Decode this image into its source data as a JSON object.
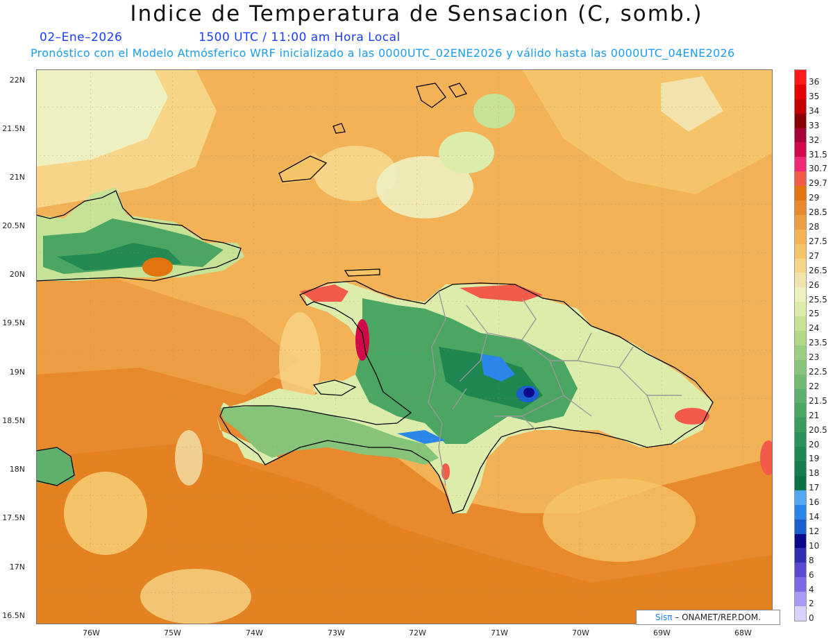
{
  "title": "Indice de Temperatura de Sensacion (C, somb.)",
  "date_label": "02–Ene–2026",
  "time_label": "1500 UTC / 11:00 am Hora Local",
  "forecast_info": "Pronóstico con el Modelo Atmósferico WRF inicializado a las 0000UTC_02ENE2026 y válido hasta las  0000UTC_04ENE2026",
  "credit": {
    "logo": "Sisπ",
    "text": " – ONAMET/REP.DOM."
  },
  "axes": {
    "lat_labels": [
      "22N",
      "21.5N",
      "21N",
      "20.5N",
      "20N",
      "19.5N",
      "19N",
      "18.5N",
      "18N",
      "17.5N",
      "17N",
      "16.5N"
    ],
    "lon_labels": [
      "76W",
      "75W",
      "74W",
      "73W",
      "72W",
      "71W",
      "70W",
      "69W",
      "68W"
    ]
  },
  "colorbar": [
    {
      "label": "36",
      "color": "#ff1a1a"
    },
    {
      "label": "35",
      "color": "#e60000"
    },
    {
      "label": "34",
      "color": "#c40000"
    },
    {
      "label": "33",
      "color": "#8b0000"
    },
    {
      "label": "32",
      "color": "#a8003a"
    },
    {
      "label": "31.5",
      "color": "#d10a4c"
    },
    {
      "label": "30.7",
      "color": "#f0287a"
    },
    {
      "label": "29.7",
      "color": "#f25a4a"
    },
    {
      "label": "29",
      "color": "#e2740e"
    },
    {
      "label": "28.5",
      "color": "#e8892e"
    },
    {
      "label": "28",
      "color": "#ee9e42"
    },
    {
      "label": "27.5",
      "color": "#f3b256"
    },
    {
      "label": "27",
      "color": "#f6c468"
    },
    {
      "label": "26.5",
      "color": "#f6d488"
    },
    {
      "label": "26",
      "color": "#f2e2ac"
    },
    {
      "label": "25.5",
      "color": "#eef0c0"
    },
    {
      "label": "25",
      "color": "#dcecaa"
    },
    {
      "label": "24",
      "color": "#c6e296"
    },
    {
      "label": "23.5",
      "color": "#b0d888"
    },
    {
      "label": "23",
      "color": "#9ace80"
    },
    {
      "label": "22.5",
      "color": "#86c47a"
    },
    {
      "label": "22",
      "color": "#72ba72"
    },
    {
      "label": "21.5",
      "color": "#5eb06a"
    },
    {
      "label": "21",
      "color": "#4aa662"
    },
    {
      "label": "20.5",
      "color": "#3a9c5c"
    },
    {
      "label": "20",
      "color": "#2c9258"
    },
    {
      "label": "19",
      "color": "#208852"
    },
    {
      "label": "18",
      "color": "#147e4c"
    },
    {
      "label": "17",
      "color": "#0c7444"
    },
    {
      "label": "16",
      "color": "#50a8f4"
    },
    {
      "label": "14",
      "color": "#2a86e8"
    },
    {
      "label": "12",
      "color": "#1a5ed0"
    },
    {
      "label": "10",
      "color": "#0a0a8a"
    },
    {
      "label": "8",
      "color": "#3030b0"
    },
    {
      "label": "6",
      "color": "#5a4ad0"
    },
    {
      "label": "4",
      "color": "#7a6ae6"
    },
    {
      "label": "2",
      "color": "#a89af4"
    },
    {
      "label": "0",
      "color": "#d8d2fa"
    }
  ]
}
